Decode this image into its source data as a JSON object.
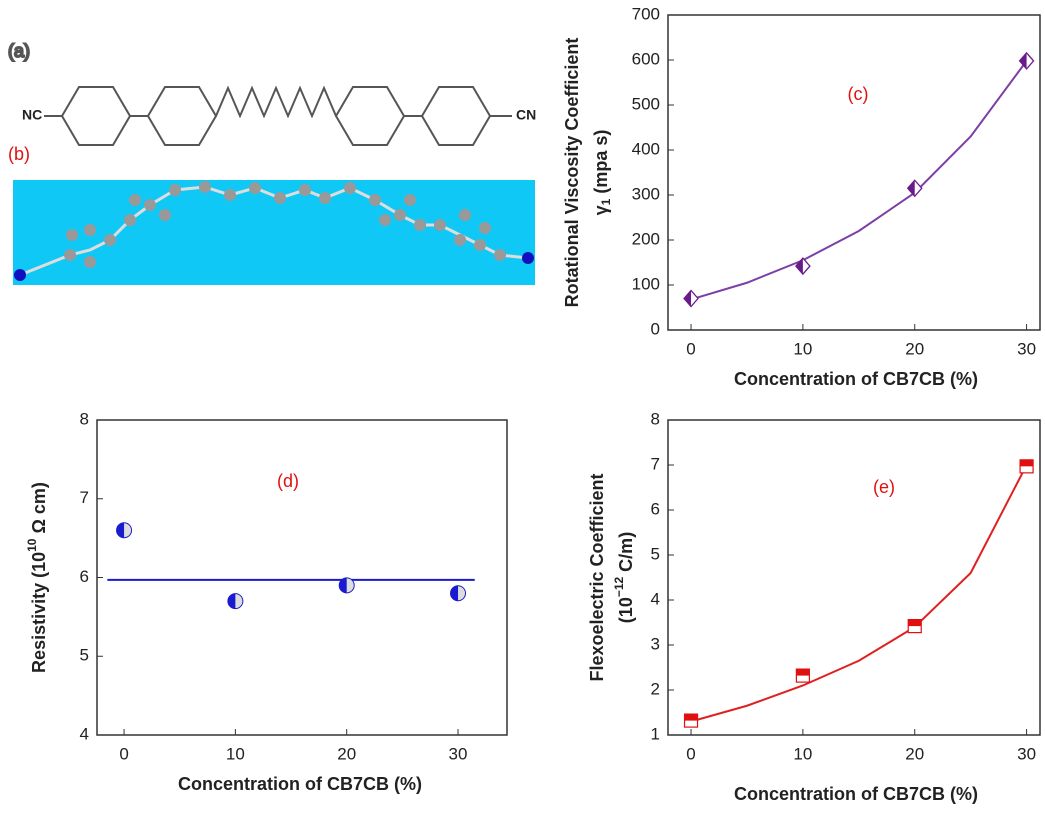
{
  "structure": {
    "label_a": "(a)",
    "label_b": "(b)",
    "left_group": "NC",
    "right_group": "CN"
  },
  "chart_data": [
    {
      "type": "scatter",
      "annotation": "(c)",
      "xlabel": "Concentration of CB7CB (%)",
      "ylabel": [
        [
          "Rotational Viscosity Coefficient"
        ],
        [
          "γ",
          "1",
          "(mpa s)"
        ]
      ],
      "x": [
        0,
        10,
        20,
        30
      ],
      "values": [
        70,
        142,
        315,
        598
      ],
      "color": "#6a1b8a",
      "marker": "diamond",
      "fit": {
        "x": [
          0,
          5,
          10,
          15,
          20,
          25,
          30
        ],
        "values": [
          68,
          105,
          155,
          220,
          305,
          430,
          598
        ],
        "color": "#7b3fa6"
      },
      "xlim": [
        -2.06,
        31.2
      ],
      "ylim": [
        0,
        700
      ],
      "xticks": [
        0,
        10,
        20,
        30
      ],
      "yticks": [
        0,
        100,
        200,
        300,
        400,
        500,
        600,
        700
      ]
    },
    {
      "type": "scatter",
      "annotation": "(d)",
      "xlabel": "Concentration of CB7CB (%)",
      "ylabel": [
        [
          "Resistivity",
          "(10",
          "10",
          "Ω cm)"
        ]
      ],
      "x": [
        0,
        10,
        20,
        30
      ],
      "values": [
        6.6,
        5.7,
        5.9,
        5.8
      ],
      "color": "#1a1ad0",
      "marker": "circle",
      "fit": {
        "x": [
          -1.5,
          31.5
        ],
        "values": [
          5.97,
          5.97
        ],
        "color": "#1a1ad0"
      },
      "xlim": [
        -2.43,
        34.4
      ],
      "ylim": [
        4,
        8
      ],
      "xticks": [
        0,
        10,
        20,
        30
      ],
      "yticks": [
        4,
        5,
        6,
        7,
        8
      ]
    },
    {
      "type": "scatter",
      "annotation": "(e)",
      "xlabel": "Concentration of CB7CB (%)",
      "ylabel": [
        [
          "Flexoelectric Coefficient"
        ],
        [
          "(10",
          "−12",
          "C/m)"
        ]
      ],
      "x": [
        0,
        10,
        20,
        30
      ],
      "values": [
        1.32,
        2.32,
        3.42,
        6.97
      ],
      "color": "#e01010",
      "marker": "square",
      "fit": {
        "x": [
          0,
          5,
          10,
          15,
          20,
          25,
          30
        ],
        "values": [
          1.3,
          1.65,
          2.1,
          2.65,
          3.4,
          4.6,
          7.0
        ],
        "color": "#e02020"
      },
      "xlim": [
        -2.06,
        31.2
      ],
      "ylim": [
        1,
        8
      ],
      "xticks": [
        0,
        10,
        20,
        30
      ],
      "yticks": [
        1,
        2,
        3,
        4,
        5,
        6,
        7,
        8
      ]
    }
  ]
}
